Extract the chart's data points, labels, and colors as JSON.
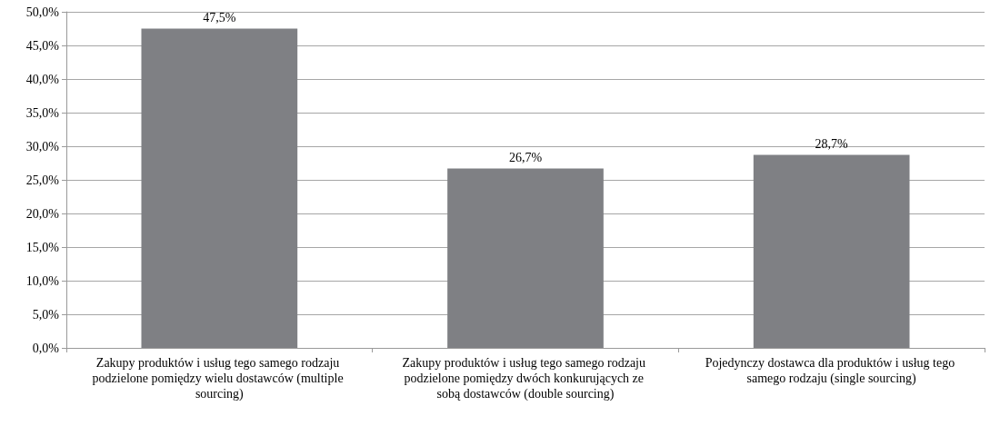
{
  "chart_data": {
    "type": "bar",
    "categories": [
      "Zakupy produktów i usług tego samego rodzaju podzielone pomiędzy wielu dostawców (multiple sourcing)",
      "Zakupy produktów i usług tego samego rodzaju podzielone pomiędzy dwóch konkurujących ze sobą dostawców (double sourcing)",
      "Pojedynczy dostawca dla produktów i usług tego samego rodzaju (single sourcing)"
    ],
    "values": [
      47.5,
      26.7,
      28.7
    ],
    "value_labels": [
      "47,5%",
      "26,7%",
      "28,7%"
    ],
    "color": "#7f8084",
    "ylim": [
      0,
      50
    ],
    "yticks": [
      {
        "value": 0,
        "label": "0,0%"
      },
      {
        "value": 5,
        "label": "5,0%"
      },
      {
        "value": 10,
        "label": "10,0%"
      },
      {
        "value": 15,
        "label": "15,0%"
      },
      {
        "value": 20,
        "label": "20,0%"
      },
      {
        "value": 25,
        "label": "25,0%"
      },
      {
        "value": 30,
        "label": "30,0%"
      },
      {
        "value": 35,
        "label": "35,0%"
      },
      {
        "value": 40,
        "label": "40,0%"
      },
      {
        "value": 45,
        "label": "45,0%"
      },
      {
        "value": 50,
        "label": "50,0%"
      }
    ],
    "grid": "y"
  }
}
